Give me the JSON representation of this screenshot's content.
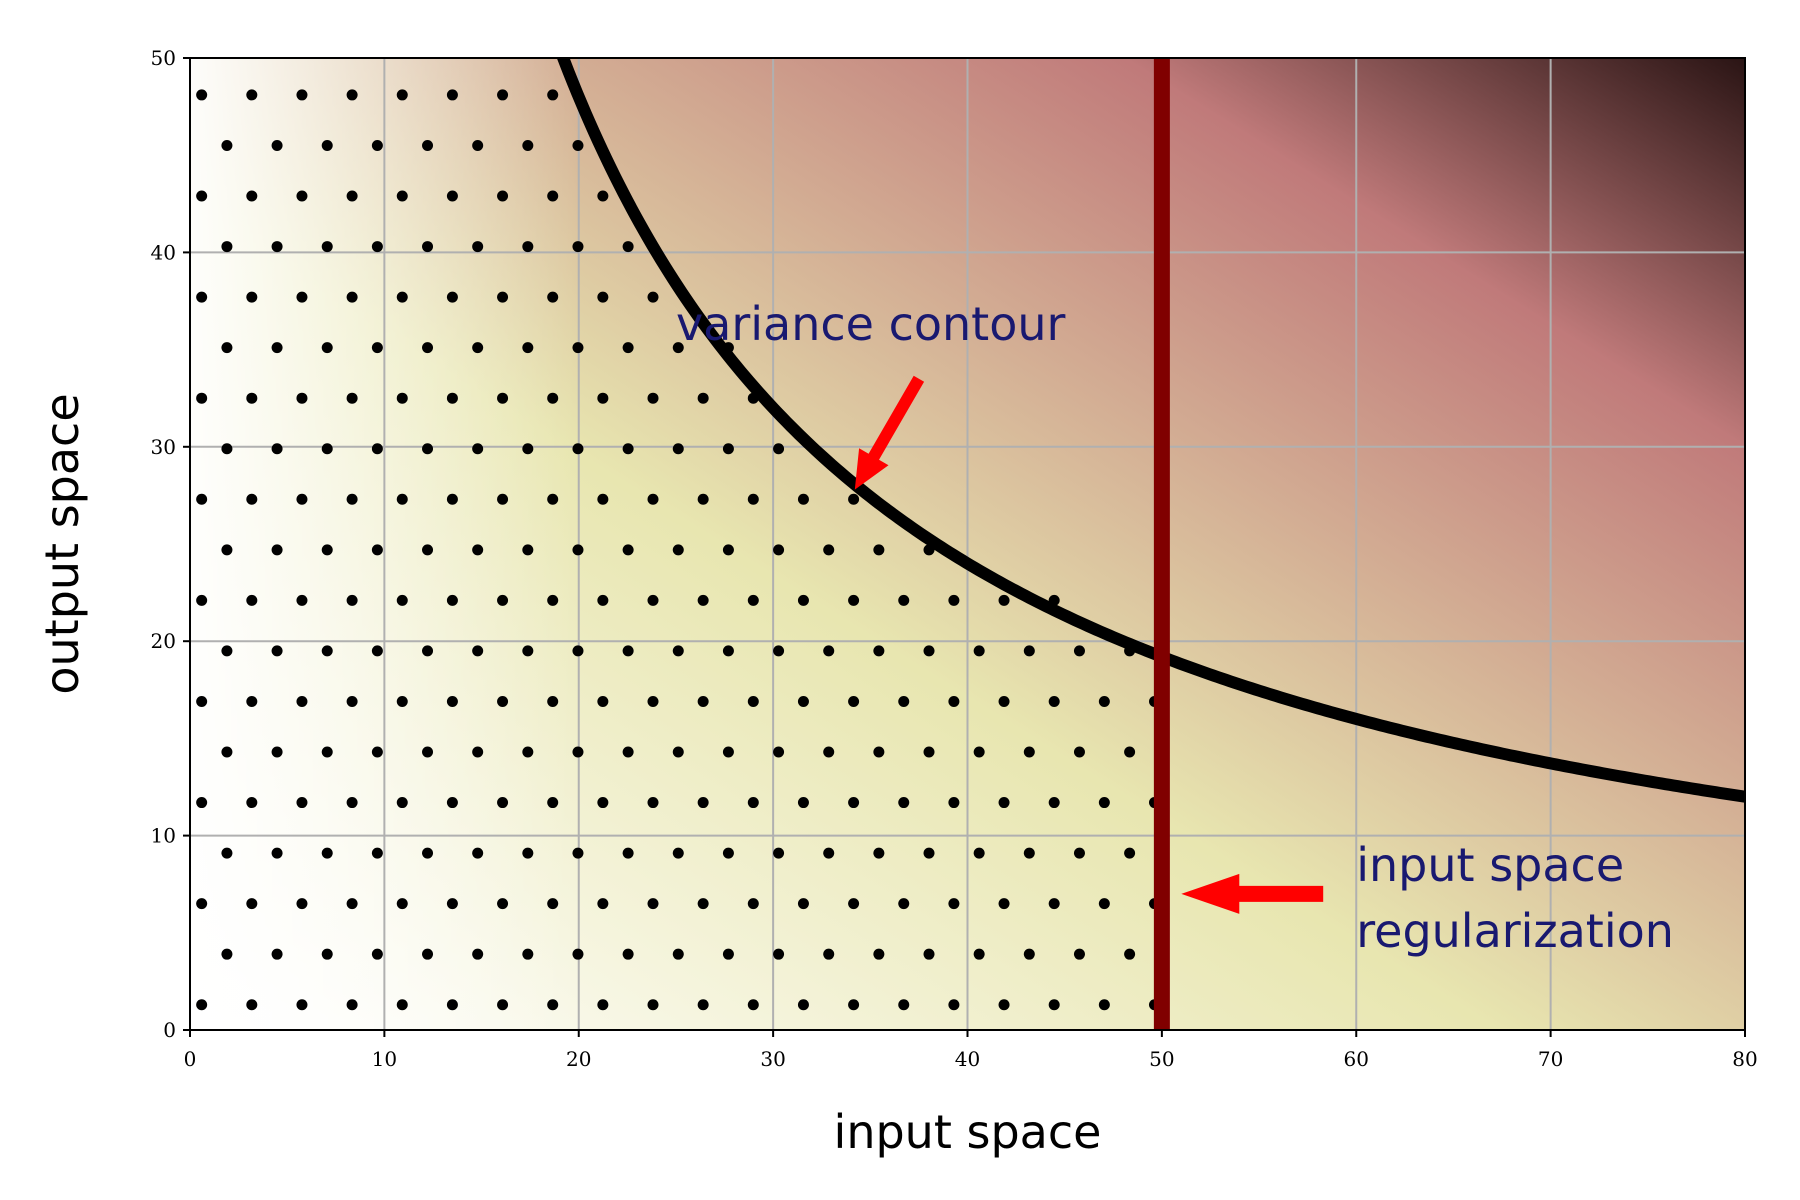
{
  "chart_data": {
    "type": "scatter",
    "title": "",
    "xlabel": "input space",
    "ylabel": "output space",
    "xlim": [
      0,
      80
    ],
    "ylim": [
      0,
      50
    ],
    "xticks": [
      "0",
      "10",
      "20",
      "30",
      "40",
      "50",
      "60",
      "70",
      "80"
    ],
    "yticks": [
      "0",
      "10",
      "20",
      "30",
      "40",
      "50"
    ],
    "grid": true,
    "background": {
      "type": "gradient",
      "colors": [
        "#ffffff",
        "#e8e6b0",
        "#c07a7a",
        "#2a1414"
      ]
    },
    "points": {
      "color": "#000000",
      "rows": [
        {
          "y": 1.3,
          "x_start": 0.6
        },
        {
          "y": 3.9,
          "x_start": 1.9
        },
        {
          "y": 6.5,
          "x_start": 0.6
        },
        {
          "y": 9.1,
          "x_start": 1.9
        },
        {
          "y": 11.7,
          "x_start": 0.6
        },
        {
          "y": 14.3,
          "x_start": 1.9
        },
        {
          "y": 16.9,
          "x_start": 0.6
        },
        {
          "y": 19.5,
          "x_start": 1.9
        },
        {
          "y": 22.1,
          "x_start": 0.6
        },
        {
          "y": 24.7,
          "x_start": 1.9
        },
        {
          "y": 27.3,
          "x_start": 0.6
        },
        {
          "y": 29.9,
          "x_start": 1.9
        },
        {
          "y": 32.5,
          "x_start": 0.6
        },
        {
          "y": 35.1,
          "x_start": 1.9
        },
        {
          "y": 37.7,
          "x_start": 0.6
        },
        {
          "y": 40.3,
          "x_start": 1.9
        },
        {
          "y": 42.9,
          "x_start": 0.6
        },
        {
          "y": 45.5,
          "x_start": 1.9
        },
        {
          "y": 48.1,
          "x_start": 0.6
        }
      ],
      "x_step": 2.58,
      "x_max": 50,
      "bound": "below-contour"
    },
    "contour": {
      "label": "variance contour",
      "color": "#000000",
      "equation": "x*y = 960",
      "x_range": [
        15.4,
        80
      ]
    },
    "regularization": {
      "label_lines": [
        "input space",
        "regularization"
      ],
      "x": 50,
      "color": "#800000"
    },
    "annotations": [
      {
        "text": "variance contour",
        "x": 25,
        "y": 35.5,
        "color": "#191970",
        "arrow_from": [
          37.5,
          33.5
        ],
        "arrow_to": [
          34.2,
          27.8
        ]
      },
      {
        "text_lines": [
          "input space",
          "regularization"
        ],
        "x": 60,
        "y": 8.5,
        "color": "#191970",
        "arrow_from": [
          58.3,
          7.0
        ],
        "arrow_to": [
          51.0,
          7.0
        ]
      }
    ],
    "arrow_color": "#ff0000"
  }
}
